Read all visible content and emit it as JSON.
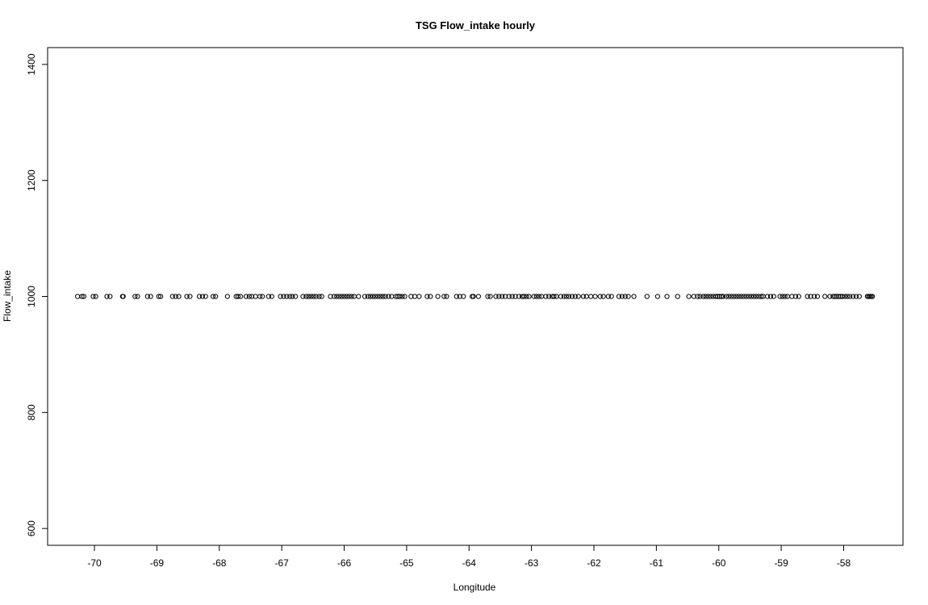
{
  "chart_data": {
    "type": "scatter",
    "title": "TSG Flow_intake hourly",
    "xlabel": "Longitude",
    "ylabel": "Flow_intake",
    "xlim": [
      -70.75,
      -57.05
    ],
    "ylim": [
      571,
      1429
    ],
    "x_ticks": [
      -70,
      -69,
      -68,
      -67,
      -66,
      -65,
      -64,
      -63,
      -62,
      -61,
      -60,
      -59,
      -58
    ],
    "y_ticks": [
      600,
      800,
      1000,
      1200,
      1400
    ],
    "grid": false,
    "legend": "none",
    "point_color": "#000000",
    "marker": "open-circle",
    "series": [
      {
        "y_constant": 1000,
        "x": [
          -70.27,
          -70.2,
          -70.17,
          -70.02,
          -69.98,
          -69.8,
          -69.75,
          -69.55,
          -69.54,
          -69.35,
          -69.31,
          -69.15,
          -69.1,
          -68.97,
          -68.94,
          -68.75,
          -68.7,
          -68.65,
          -68.52,
          -68.47,
          -68.32,
          -68.27,
          -68.22,
          -68.1,
          -68.06,
          -67.87,
          -67.73,
          -67.7,
          -67.66,
          -67.57,
          -67.52,
          -67.48,
          -67.42,
          -67.35,
          -67.31,
          -67.21,
          -67.16,
          -67.02,
          -66.97,
          -66.92,
          -66.87,
          -66.83,
          -66.78,
          -66.66,
          -66.61,
          -66.57,
          -66.53,
          -66.49,
          -66.45,
          -66.4,
          -66.36,
          -66.22,
          -66.16,
          -66.12,
          -66.08,
          -66.04,
          -66.0,
          -65.96,
          -65.92,
          -65.88,
          -65.84,
          -65.77,
          -65.67,
          -65.62,
          -65.58,
          -65.54,
          -65.5,
          -65.46,
          -65.42,
          -65.38,
          -65.34,
          -65.29,
          -65.24,
          -65.17,
          -65.14,
          -65.11,
          -65.07,
          -65.03,
          -64.93,
          -64.87,
          -64.8,
          -64.67,
          -64.62,
          -64.5,
          -64.4,
          -64.36,
          -64.2,
          -64.15,
          -64.09,
          -63.95,
          -63.93,
          -63.85,
          -63.7,
          -63.66,
          -63.57,
          -63.52,
          -63.47,
          -63.42,
          -63.36,
          -63.31,
          -63.26,
          -63.2,
          -63.15,
          -63.12,
          -63.08,
          -63.04,
          -62.96,
          -62.92,
          -62.88,
          -62.84,
          -62.77,
          -62.72,
          -62.67,
          -62.64,
          -62.6,
          -62.53,
          -62.48,
          -62.44,
          -62.4,
          -62.35,
          -62.3,
          -62.25,
          -62.17,
          -62.12,
          -62.05,
          -61.98,
          -61.9,
          -61.85,
          -61.77,
          -61.72,
          -61.6,
          -61.55,
          -61.5,
          -61.45,
          -61.36,
          -61.15,
          -60.98,
          -60.83,
          -60.66,
          -60.48,
          -60.4,
          -60.34,
          -60.3,
          -60.25,
          -60.21,
          -60.17,
          -60.13,
          -60.09,
          -60.05,
          -60.02,
          -59.99,
          -59.96,
          -59.93,
          -59.88,
          -59.84,
          -59.8,
          -59.76,
          -59.72,
          -59.68,
          -59.64,
          -59.6,
          -59.56,
          -59.52,
          -59.48,
          -59.44,
          -59.4,
          -59.36,
          -59.32,
          -59.29,
          -59.22,
          -59.17,
          -59.12,
          -59.02,
          -58.98,
          -58.94,
          -58.9,
          -58.83,
          -58.77,
          -58.72,
          -58.58,
          -58.53,
          -58.47,
          -58.42,
          -58.3,
          -58.22,
          -58.17,
          -58.14,
          -58.11,
          -58.08,
          -58.05,
          -58.02,
          -57.98,
          -57.94,
          -57.9,
          -57.85,
          -57.8,
          -57.75,
          -57.62,
          -57.6,
          -57.58,
          -57.56,
          -57.54
        ]
      }
    ]
  }
}
